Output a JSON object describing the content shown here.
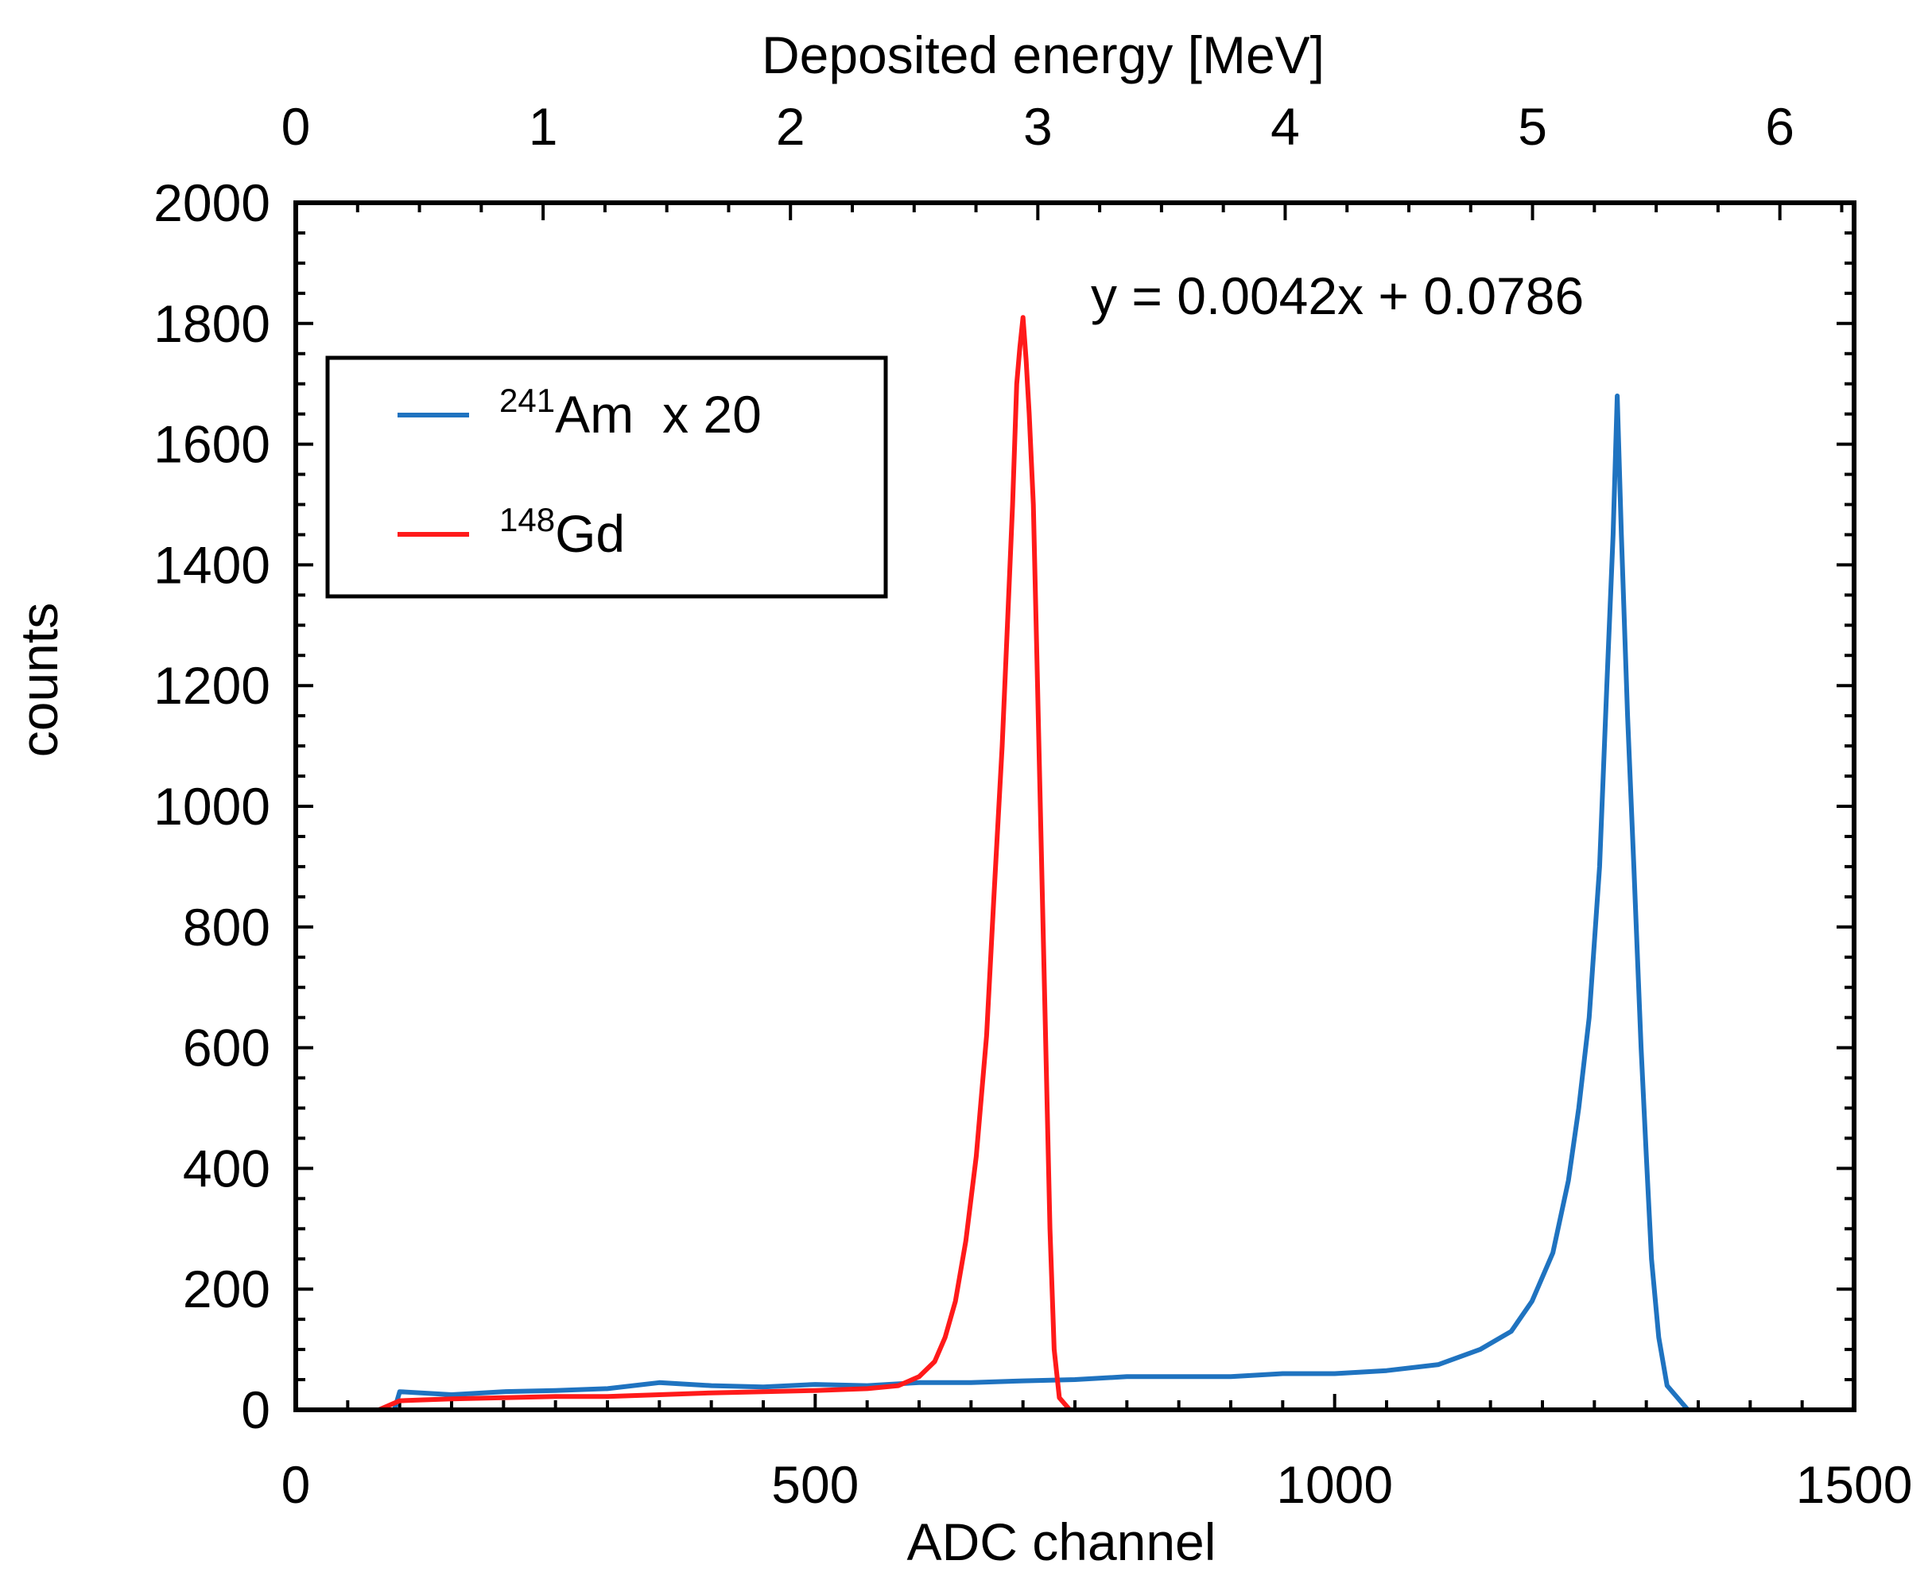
{
  "chart_data": {
    "type": "line",
    "xlabel": "ADC channel",
    "x2label": "Deposited energy [MeV]",
    "ylabel": "counts",
    "xlim": [
      0,
      1500
    ],
    "x2lim": [
      0,
      6.3
    ],
    "ylim": [
      0,
      2000
    ],
    "x_ticks": [
      "0",
      "500",
      "1000",
      "1500"
    ],
    "x2_ticks": [
      "0",
      "1",
      "2",
      "3",
      "4",
      "5",
      "6"
    ],
    "y_ticks": [
      "0",
      "200",
      "400",
      "600",
      "800",
      "1000",
      "1200",
      "1400",
      "1600",
      "1800",
      "2000"
    ],
    "annotation": "y = 0.0042x + 0.0786",
    "legend_position": "upper-left",
    "series": [
      {
        "name_sup": "241",
        "name_main": "Am",
        "name_suffix": "x 20",
        "color": "#1f73c0",
        "points": [
          [
            0,
            0
          ],
          [
            95,
            0
          ],
          [
            100,
            30
          ],
          [
            150,
            25
          ],
          [
            200,
            30
          ],
          [
            250,
            32
          ],
          [
            300,
            35
          ],
          [
            350,
            45
          ],
          [
            400,
            40
          ],
          [
            450,
            38
          ],
          [
            500,
            42
          ],
          [
            550,
            40
          ],
          [
            600,
            45
          ],
          [
            650,
            45
          ],
          [
            700,
            48
          ],
          [
            750,
            50
          ],
          [
            800,
            55
          ],
          [
            850,
            55
          ],
          [
            900,
            55
          ],
          [
            950,
            60
          ],
          [
            1000,
            60
          ],
          [
            1050,
            65
          ],
          [
            1100,
            75
          ],
          [
            1140,
            100
          ],
          [
            1170,
            130
          ],
          [
            1190,
            180
          ],
          [
            1210,
            260
          ],
          [
            1225,
            380
          ],
          [
            1235,
            500
          ],
          [
            1245,
            650
          ],
          [
            1255,
            900
          ],
          [
            1262,
            1200
          ],
          [
            1268,
            1450
          ],
          [
            1272,
            1680
          ],
          [
            1276,
            1450
          ],
          [
            1282,
            1150
          ],
          [
            1288,
            900
          ],
          [
            1295,
            600
          ],
          [
            1300,
            420
          ],
          [
            1305,
            250
          ],
          [
            1312,
            120
          ],
          [
            1320,
            40
          ],
          [
            1330,
            20
          ],
          [
            1340,
            0
          ],
          [
            1500,
            0
          ]
        ]
      },
      {
        "name_sup": "148",
        "name_main": "Gd",
        "name_suffix": "",
        "color": "#ff1a1a",
        "points": [
          [
            0,
            0
          ],
          [
            80,
            0
          ],
          [
            100,
            15
          ],
          [
            150,
            18
          ],
          [
            200,
            20
          ],
          [
            250,
            22
          ],
          [
            300,
            22
          ],
          [
            350,
            25
          ],
          [
            400,
            28
          ],
          [
            450,
            30
          ],
          [
            500,
            32
          ],
          [
            550,
            35
          ],
          [
            580,
            40
          ],
          [
            600,
            55
          ],
          [
            615,
            80
          ],
          [
            625,
            120
          ],
          [
            635,
            180
          ],
          [
            645,
            280
          ],
          [
            655,
            420
          ],
          [
            665,
            620
          ],
          [
            672,
            850
          ],
          [
            680,
            1100
          ],
          [
            685,
            1300
          ],
          [
            690,
            1500
          ],
          [
            694,
            1700
          ],
          [
            697,
            1760
          ],
          [
            700,
            1810
          ],
          [
            703,
            1740
          ],
          [
            706,
            1650
          ],
          [
            710,
            1500
          ],
          [
            714,
            1200
          ],
          [
            718,
            900
          ],
          [
            722,
            600
          ],
          [
            726,
            300
          ],
          [
            730,
            100
          ],
          [
            735,
            20
          ],
          [
            745,
            0
          ],
          [
            1500,
            0
          ]
        ]
      }
    ]
  }
}
